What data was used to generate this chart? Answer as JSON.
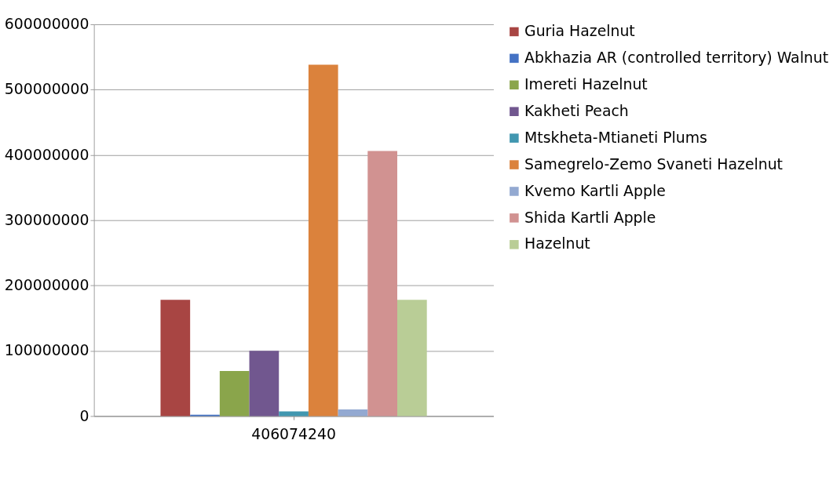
{
  "chart_data": {
    "type": "bar",
    "categories": [
      "406074240"
    ],
    "series": [
      {
        "name": "Guria Hazelnut",
        "color": "#a84543",
        "values": [
          178000000
        ]
      },
      {
        "name": "Abkhazia AR (controlled territory) Walnut",
        "color": "#4472c4",
        "values": [
          2000000
        ]
      },
      {
        "name": "Imereti Hazelnut",
        "color": "#8aa54b",
        "values": [
          69000000
        ]
      },
      {
        "name": "Kakheti Peach",
        "color": "#71578f",
        "values": [
          100000000
        ]
      },
      {
        "name": "Mtskheta-Mtianeti Plums",
        "color": "#4197b0",
        "values": [
          7000000
        ]
      },
      {
        "name": "Samegrelo-Zemo Svaneti Hazelnut",
        "color": "#db823c",
        "values": [
          538000000
        ]
      },
      {
        "name": "Kvemo Kartli Apple",
        "color": "#93a9d1",
        "values": [
          10000000
        ]
      },
      {
        "name": "Shida  Kartli Apple",
        "color": "#d19291",
        "values": [
          406000000
        ]
      },
      {
        "name": "Hazelnut",
        "color": "#b9cd96",
        "values": [
          178000000
        ]
      }
    ],
    "ylim": [
      0,
      600000000
    ],
    "yticks": [
      0,
      100000000,
      200000000,
      300000000,
      400000000,
      500000000,
      600000000
    ],
    "grid": "y",
    "legend": "right"
  }
}
